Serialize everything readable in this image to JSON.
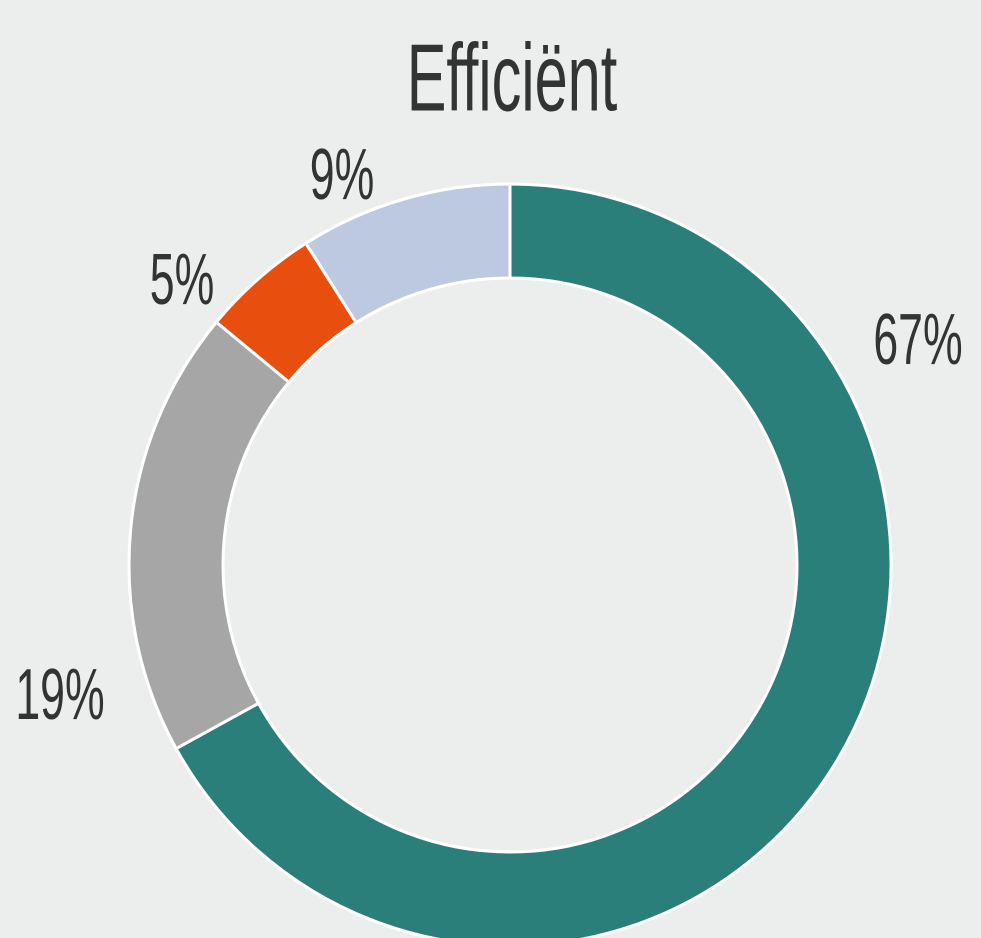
{
  "chart_data": {
    "type": "donut",
    "title": "Efficiënt",
    "values": [
      67,
      19,
      5,
      9
    ],
    "value_labels": [
      "67%",
      "19%",
      "5%",
      "9%"
    ],
    "colors": [
      "#2b7f7b",
      "#a6a6a6",
      "#e84e0e",
      "#bdc9e1"
    ]
  }
}
